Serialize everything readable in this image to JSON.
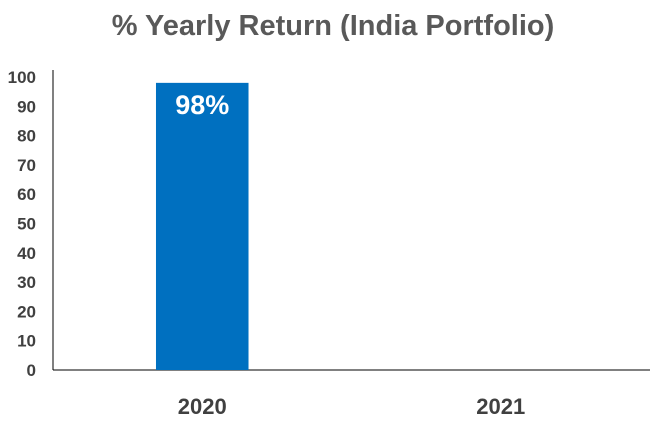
{
  "chart_data": {
    "type": "bar",
    "title": "% Yearly Return (India Portfolio)",
    "categories": [
      "2020",
      "2021"
    ],
    "values": [
      98,
      null
    ],
    "data_labels": [
      "98%",
      ""
    ],
    "ylim": [
      0,
      100
    ],
    "yticks": [
      "0",
      "10",
      "20",
      "30",
      "40",
      "50",
      "60",
      "70",
      "80",
      "90",
      "100"
    ],
    "xlabel": "",
    "ylabel": "",
    "grid": false,
    "legend": "none",
    "bar_color": "#0070C0"
  }
}
